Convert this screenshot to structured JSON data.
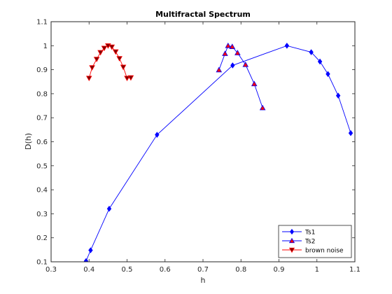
{
  "chart_data": {
    "type": "line",
    "title": "Multifractal Spectrum",
    "xlabel": "h",
    "ylabel": "D(h)",
    "xlim": [
      0.3,
      1.1
    ],
    "ylim": [
      0.1,
      1.1
    ],
    "xticks": [
      0.3,
      0.4,
      0.5,
      0.6,
      0.7,
      0.8,
      0.9,
      1.0,
      1.1
    ],
    "xtick_labels": [
      "0.3",
      "0.4",
      "0.5",
      "0.6",
      "0.7",
      "0.8",
      "0.9",
      "1",
      "1.1"
    ],
    "yticks": [
      0.1,
      0.2,
      0.3,
      0.4,
      0.5,
      0.6,
      0.7,
      0.8,
      0.9,
      1.0,
      1.1
    ],
    "ytick_labels": [
      "0.1",
      "0.2",
      "0.3",
      "0.4",
      "0.5",
      "0.6",
      "0.7",
      "0.8",
      "0.9",
      "1",
      "1.1"
    ],
    "grid": false,
    "legend_position": "bottom-right",
    "series": [
      {
        "name": "Ts1",
        "color": "#0000ff",
        "marker": "diamond",
        "marker_fill": "#0000ff",
        "x": [
          0.392,
          0.404,
          0.453,
          0.579,
          0.778,
          0.921,
          0.985,
          1.008,
          1.029,
          1.056,
          1.089
        ],
        "y": [
          0.103,
          0.148,
          0.321,
          0.629,
          0.918,
          1.0,
          0.973,
          0.934,
          0.882,
          0.792,
          0.636
        ]
      },
      {
        "name": "Ts2",
        "color": "#0000ff",
        "marker": "triangle-up",
        "marker_fill": "#ff0000",
        "x": [
          0.742,
          0.758,
          0.766,
          0.777,
          0.791,
          0.812,
          0.835,
          0.857
        ],
        "y": [
          0.899,
          0.967,
          1.0,
          0.996,
          0.97,
          0.921,
          0.841,
          0.741
        ]
      },
      {
        "name": "brown noise",
        "color": "#ff0000",
        "marker": "triangle-down",
        "marker_fill": "#800000",
        "x": [
          0.4,
          0.408,
          0.42,
          0.43,
          0.44,
          0.45,
          0.46,
          0.47,
          0.48,
          0.49,
          0.5,
          0.51
        ],
        "y": [
          0.865,
          0.909,
          0.944,
          0.972,
          0.99,
          1.0,
          0.995,
          0.975,
          0.947,
          0.911,
          0.865,
          0.867
        ]
      }
    ]
  }
}
